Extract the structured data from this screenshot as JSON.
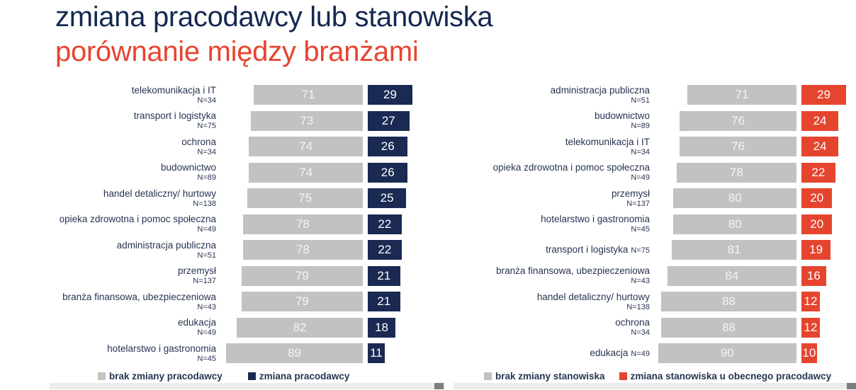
{
  "title": {
    "line1": "zmiana pracodawcy lub stanowiska",
    "line2": "porównanie między branżami"
  },
  "colors": {
    "title_primary": "#142850",
    "title_accent": "#e5452f",
    "label_text": "#273452",
    "bar_gray": "#c2c2c2",
    "bar_navy": "#1a2a52",
    "bar_red": "#e5452f",
    "scrollbar_track": "#ededed",
    "scrollbar_thumb": "#7e7e7e"
  },
  "chart_data": [
    {
      "type": "bar",
      "orientation": "horizontal",
      "stacked": true,
      "units": "percent",
      "value_range": [
        0,
        100
      ],
      "legend_position": "bottom",
      "series": [
        {
          "name": "brak zmiany pracodawcy",
          "color": "#c2c2c2"
        },
        {
          "name": "zmiana pracodawcy",
          "color": "#1a2a52"
        }
      ],
      "rows": [
        {
          "label": "telekomunikacja i IT",
          "n": "N=34",
          "values": [
            71,
            29
          ]
        },
        {
          "label": "transport i logistyka",
          "n": "N=75",
          "values": [
            73,
            27
          ]
        },
        {
          "label": "ochrona",
          "n": "N=34",
          "values": [
            74,
            26
          ]
        },
        {
          "label": "budownictwo",
          "n": "N=89",
          "values": [
            74,
            26
          ]
        },
        {
          "label": "handel detaliczny/ hurtowy",
          "n": "N=138",
          "values": [
            75,
            25
          ]
        },
        {
          "label": "opieka zdrowotna i pomoc społeczna",
          "n": "N=49",
          "values": [
            78,
            22
          ]
        },
        {
          "label": "administracja publiczna",
          "n": "N=51",
          "values": [
            78,
            22
          ]
        },
        {
          "label": "przemysł",
          "n": "N=137",
          "values": [
            79,
            21
          ]
        },
        {
          "label": "branża finansowa, ubezpieczeniowa",
          "n": "N=43",
          "values": [
            79,
            21
          ]
        },
        {
          "label": "edukacja",
          "n": "N=49",
          "values": [
            82,
            18
          ]
        },
        {
          "label": "hotelarstwo i gastronomia",
          "n": "N=45",
          "values": [
            89,
            11
          ]
        }
      ]
    },
    {
      "type": "bar",
      "orientation": "horizontal",
      "stacked": true,
      "units": "percent",
      "value_range": [
        0,
        100
      ],
      "legend_position": "bottom",
      "series": [
        {
          "name": "brak zmiany stanowiska",
          "color": "#c2c2c2"
        },
        {
          "name": "zmiana stanowiska u obecnego pracodawcy",
          "color": "#e5452f"
        }
      ],
      "rows": [
        {
          "label": "administracja publiczna",
          "n": "N=51",
          "values": [
            71,
            29
          ]
        },
        {
          "label": "budownictwo",
          "n": "N=89",
          "values": [
            76,
            24
          ]
        },
        {
          "label": "telekomunikacja i IT",
          "n": "N=34",
          "values": [
            76,
            24
          ]
        },
        {
          "label": "opieka zdrowotna i pomoc społeczna",
          "n": "N=49",
          "values": [
            78,
            22
          ]
        },
        {
          "label": "przemysł",
          "n": "N=137",
          "values": [
            80,
            20
          ]
        },
        {
          "label": "hotelarstwo i gastronomia",
          "n": "N=45",
          "values": [
            80,
            20
          ]
        },
        {
          "label": "transport i logistyka",
          "n": "N=75",
          "inline_n": true,
          "values": [
            81,
            19
          ]
        },
        {
          "label": "branża finansowa, ubezpieczeniowa",
          "n": "N=43",
          "values": [
            84,
            16
          ]
        },
        {
          "label": "handel detaliczny/ hurtowy",
          "n": "N=138",
          "values": [
            88,
            12
          ]
        },
        {
          "label": "ochrona",
          "n": "N=34",
          "values": [
            88,
            12
          ]
        },
        {
          "label": "edukacja",
          "n": "N=49",
          "inline_n": true,
          "values": [
            90,
            10
          ]
        }
      ]
    }
  ]
}
